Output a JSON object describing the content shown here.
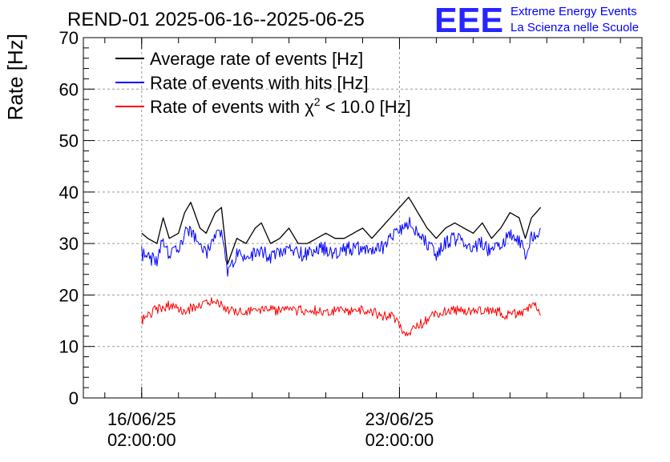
{
  "logo": {
    "text": "EEE",
    "line1": "Extreme Energy Events",
    "line2": "La Scienza nelle Scuole"
  },
  "colors": {
    "logo": "#0000ff",
    "average": "#000000",
    "hits": "#0000ff",
    "chi2": "#ff0000",
    "grid": "#999999"
  },
  "chart_data": {
    "type": "line",
    "title": "REND-01 2025-06-16--2025-06-25",
    "ylabel": "Rate [Hz]",
    "xlabel": "",
    "ylim": [
      0,
      70
    ],
    "xlim": [
      "2025-06-14 12:00",
      "2025-06-29 16:00"
    ],
    "grid": true,
    "legend_position": "top-left",
    "y_ticks": [
      0,
      10,
      20,
      30,
      40,
      50,
      60,
      70
    ],
    "x_ticks": [
      {
        "value": "2025-06-16 02:00",
        "line1": "16/06/25",
        "line2": "02:00:00"
      },
      {
        "value": "2025-06-23 02:00",
        "line1": "23/06/25",
        "line2": "02:00:00"
      }
    ],
    "legend": {
      "average": "Average rate of events [Hz]",
      "hits": "Rate of events with hits [Hz]",
      "chi2_prefix": "Rate of events with ",
      "chi2_symbol": "χ",
      "chi2_exp": "2",
      "chi2_suffix": " < 10.0 [Hz]"
    },
    "series": [
      {
        "key": "average",
        "name": "Average rate of events [Hz]",
        "x": [
          "2025-06-16 02:00",
          "2025-06-16 06:00",
          "2025-06-16 12:00",
          "2025-06-16 16:00",
          "2025-06-16 20:00",
          "2025-06-17 02:00",
          "2025-06-17 06:00",
          "2025-06-17 10:00",
          "2025-06-17 16:00",
          "2025-06-17 20:00",
          "2025-06-18 02:00",
          "2025-06-18 06:00",
          "2025-06-18 10:00",
          "2025-06-18 16:00",
          "2025-06-18 22:00",
          "2025-06-19 04:00",
          "2025-06-19 08:00",
          "2025-06-19 14:00",
          "2025-06-19 20:00",
          "2025-06-20 02:00",
          "2025-06-20 08:00",
          "2025-06-20 14:00",
          "2025-06-20 20:00",
          "2025-06-21 02:00",
          "2025-06-21 08:00",
          "2025-06-21 14:00",
          "2025-06-21 20:00",
          "2025-06-22 02:00",
          "2025-06-22 08:00",
          "2025-06-22 14:00",
          "2025-06-22 20:00",
          "2025-06-23 02:00",
          "2025-06-23 08:00",
          "2025-06-23 14:00",
          "2025-06-23 20:00",
          "2025-06-24 02:00",
          "2025-06-24 08:00",
          "2025-06-24 14:00",
          "2025-06-24 20:00",
          "2025-06-25 02:00",
          "2025-06-25 08:00",
          "2025-06-25 14:00",
          "2025-06-25 20:00",
          "2025-06-26 02:00",
          "2025-06-26 08:00",
          "2025-06-26 12:00",
          "2025-06-26 16:00",
          "2025-06-26 22:00"
        ],
        "y": [
          32,
          31,
          30,
          35,
          31,
          32,
          36,
          38,
          33,
          32,
          36,
          37,
          26,
          31,
          30,
          33,
          34,
          30,
          31,
          33,
          30,
          30,
          31,
          32,
          31,
          31,
          32,
          33,
          31,
          33,
          35,
          37,
          39,
          36,
          33,
          31,
          33,
          34,
          33,
          32,
          34,
          31,
          33,
          36,
          35,
          31,
          35,
          37
        ]
      },
      {
        "key": "hits",
        "name": "Rate of events with hits [Hz]",
        "x": [
          "2025-06-16 02:00",
          "2025-06-16 06:00",
          "2025-06-16 12:00",
          "2025-06-16 16:00",
          "2025-06-16 20:00",
          "2025-06-17 02:00",
          "2025-06-17 06:00",
          "2025-06-17 10:00",
          "2025-06-17 16:00",
          "2025-06-17 20:00",
          "2025-06-18 02:00",
          "2025-06-18 06:00",
          "2025-06-18 10:00",
          "2025-06-18 16:00",
          "2025-06-18 22:00",
          "2025-06-19 04:00",
          "2025-06-19 08:00",
          "2025-06-19 14:00",
          "2025-06-19 20:00",
          "2025-06-20 02:00",
          "2025-06-20 08:00",
          "2025-06-20 14:00",
          "2025-06-20 20:00",
          "2025-06-21 02:00",
          "2025-06-21 08:00",
          "2025-06-21 14:00",
          "2025-06-21 20:00",
          "2025-06-22 02:00",
          "2025-06-22 08:00",
          "2025-06-22 14:00",
          "2025-06-22 20:00",
          "2025-06-23 02:00",
          "2025-06-23 08:00",
          "2025-06-23 14:00",
          "2025-06-23 20:00",
          "2025-06-24 02:00",
          "2025-06-24 08:00",
          "2025-06-24 14:00",
          "2025-06-24 20:00",
          "2025-06-25 02:00",
          "2025-06-25 08:00",
          "2025-06-25 14:00",
          "2025-06-25 20:00",
          "2025-06-26 02:00",
          "2025-06-26 08:00",
          "2025-06-26 12:00",
          "2025-06-26 16:00",
          "2025-06-26 22:00"
        ],
        "y": [
          28,
          27,
          27,
          31,
          28,
          29,
          32,
          33,
          29,
          28,
          31,
          33,
          25,
          28,
          27,
          28,
          29,
          27,
          28,
          29,
          28,
          28,
          29,
          29,
          28,
          29,
          29,
          29,
          28,
          29,
          31,
          32,
          34,
          32,
          30,
          28,
          30,
          31,
          30,
          29,
          30,
          28,
          30,
          32,
          31,
          28,
          31,
          33
        ]
      },
      {
        "key": "chi2",
        "name": "Rate of events with χ2 < 10.0 [Hz]",
        "x": [
          "2025-06-16 02:00",
          "2025-06-16 10:00",
          "2025-06-16 20:00",
          "2025-06-17 06:00",
          "2025-06-17 16:00",
          "2025-06-18 02:00",
          "2025-06-18 12:00",
          "2025-06-18 22:00",
          "2025-06-19 08:00",
          "2025-06-19 18:00",
          "2025-06-20 04:00",
          "2025-06-20 14:00",
          "2025-06-21 00:00",
          "2025-06-21 10:00",
          "2025-06-21 20:00",
          "2025-06-22 06:00",
          "2025-06-22 14:00",
          "2025-06-22 20:00",
          "2025-06-23 02:00",
          "2025-06-23 06:00",
          "2025-06-23 14:00",
          "2025-06-24 00:00",
          "2025-06-24 10:00",
          "2025-06-24 20:00",
          "2025-06-25 06:00",
          "2025-06-25 16:00",
          "2025-06-26 02:00",
          "2025-06-26 12:00",
          "2025-06-26 18:00",
          "2025-06-26 22:00"
        ],
        "y": [
          15,
          17,
          18,
          17,
          18,
          19,
          17,
          17,
          17,
          17,
          17,
          17,
          17,
          17,
          17,
          17,
          16,
          16,
          14,
          12,
          14,
          16,
          17,
          17,
          17,
          17,
          16,
          17,
          18,
          16
        ]
      }
    ]
  }
}
